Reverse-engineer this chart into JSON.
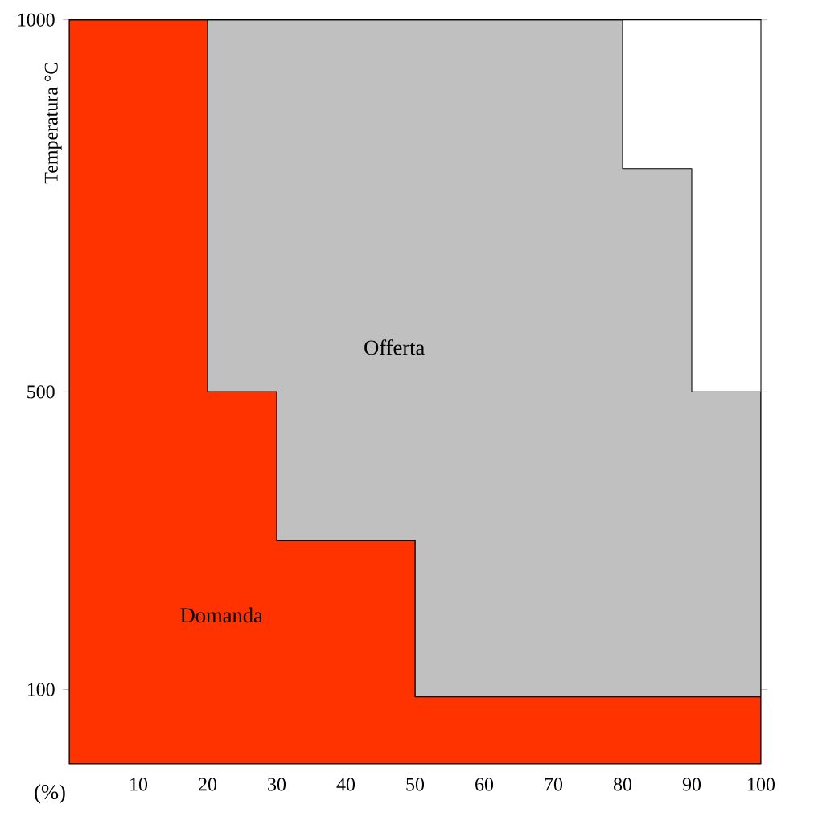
{
  "chart_data": {
    "type": "area",
    "stacked": true,
    "ylabel": "Temperatura °C",
    "xlabel": "(%)",
    "xlim": [
      0,
      100
    ],
    "ylim": [
      0,
      1000
    ],
    "xticks": [
      10,
      20,
      30,
      40,
      50,
      60,
      70,
      80,
      90,
      100
    ],
    "yticks": [
      100,
      500,
      1000
    ],
    "legend": false,
    "grid": false,
    "x": [
      0,
      20,
      20,
      30,
      30,
      50,
      50,
      80,
      80,
      90,
      90,
      100
    ],
    "series": [
      {
        "name": "Domanda",
        "color": "#ff3300",
        "values": [
          1000,
          1000,
          500,
          500,
          300,
          300,
          90,
          90,
          90,
          90,
          90,
          90
        ]
      },
      {
        "name": "Offerta",
        "color": "#c0c0c0",
        "values": [
          0,
          0,
          500,
          500,
          700,
          700,
          910,
          910,
          710,
          710,
          410,
          410
        ]
      }
    ]
  }
}
